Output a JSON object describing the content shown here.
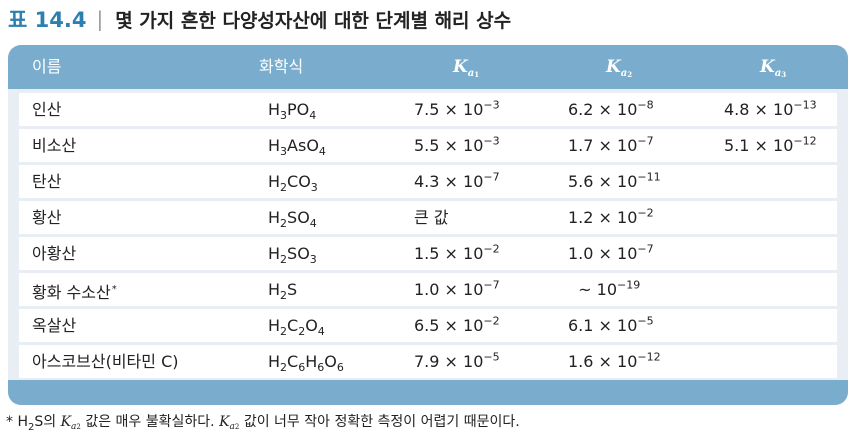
{
  "caption": {
    "label": "표 14.4",
    "separator": "|",
    "title": "몇 가지 흔한 다양성자산에 대한 단계별 해리 상수"
  },
  "table": {
    "headers": {
      "name": "이름",
      "formula": "화학식",
      "k_symbol": "K",
      "k_sub": "a",
      "k1_num": "1",
      "k2_num": "2",
      "k3_num": "3"
    },
    "rows": [
      {
        "name": "인산",
        "star": "",
        "formula": [
          [
            "H",
            ""
          ],
          [
            "3",
            "sub"
          ],
          [
            "PO",
            ""
          ],
          [
            "4",
            "sub"
          ]
        ],
        "ka1": [
          [
            "7.5 × 10",
            ""
          ],
          [
            "−3",
            "sup"
          ]
        ],
        "ka2": [
          [
            "6.2 × 10",
            ""
          ],
          [
            "−8",
            "sup"
          ]
        ],
        "ka3": [
          [
            "4.8 × 10",
            ""
          ],
          [
            "−13",
            "sup"
          ]
        ]
      },
      {
        "name": "비소산",
        "star": "",
        "formula": [
          [
            "H",
            ""
          ],
          [
            "3",
            "sub"
          ],
          [
            "AsO",
            ""
          ],
          [
            "4",
            "sub"
          ]
        ],
        "ka1": [
          [
            "5.5 × 10",
            ""
          ],
          [
            "−3",
            "sup"
          ]
        ],
        "ka2": [
          [
            "1.7 × 10",
            ""
          ],
          [
            "−7",
            "sup"
          ]
        ],
        "ka3": [
          [
            "5.1 × 10",
            ""
          ],
          [
            "−12",
            "sup"
          ]
        ]
      },
      {
        "name": "탄산",
        "star": "",
        "formula": [
          [
            "H",
            ""
          ],
          [
            "2",
            "sub"
          ],
          [
            "CO",
            ""
          ],
          [
            "3",
            "sub"
          ]
        ],
        "ka1": [
          [
            "4.3 × 10",
            ""
          ],
          [
            "−7",
            "sup"
          ]
        ],
        "ka2": [
          [
            "5.6 × 10",
            ""
          ],
          [
            "−11",
            "sup"
          ]
        ],
        "ka3": []
      },
      {
        "name": "황산",
        "star": "",
        "formula": [
          [
            "H",
            ""
          ],
          [
            "2",
            "sub"
          ],
          [
            "SO",
            ""
          ],
          [
            "4",
            "sub"
          ]
        ],
        "ka1": [
          [
            "큰 값",
            ""
          ]
        ],
        "ka2": [
          [
            "1.2 × 10",
            ""
          ],
          [
            "−2",
            "sup"
          ]
        ],
        "ka3": []
      },
      {
        "name": "아황산",
        "star": "",
        "formula": [
          [
            "H",
            ""
          ],
          [
            "2",
            "sub"
          ],
          [
            "SO",
            ""
          ],
          [
            "3",
            "sub"
          ]
        ],
        "ka1": [
          [
            "1.5 × 10",
            ""
          ],
          [
            "−2",
            "sup"
          ]
        ],
        "ka2": [
          [
            "1.0 × 10",
            ""
          ],
          [
            "−7",
            "sup"
          ]
        ],
        "ka3": []
      },
      {
        "name": "황화 수소산",
        "star": "*",
        "formula": [
          [
            "H",
            ""
          ],
          [
            "2",
            "sub"
          ],
          [
            "S",
            ""
          ]
        ],
        "ka1": [
          [
            "1.0 × 10",
            ""
          ],
          [
            "−7",
            "sup"
          ]
        ],
        "ka2": [
          [
            "  ~ 10",
            ""
          ],
          [
            "−19",
            "sup"
          ]
        ],
        "ka3": []
      },
      {
        "name": "옥살산",
        "star": "",
        "formula": [
          [
            "H",
            ""
          ],
          [
            "2",
            "sub"
          ],
          [
            "C",
            ""
          ],
          [
            "2",
            "sub"
          ],
          [
            "O",
            ""
          ],
          [
            "4",
            "sub"
          ]
        ],
        "ka1": [
          [
            "6.5 × 10",
            ""
          ],
          [
            "−2",
            "sup"
          ]
        ],
        "ka2": [
          [
            "6.1 × 10",
            ""
          ],
          [
            "−5",
            "sup"
          ]
        ],
        "ka3": []
      },
      {
        "name": "아스코브산(비타민 C)",
        "star": "",
        "formula": [
          [
            "H",
            ""
          ],
          [
            "2",
            "sub"
          ],
          [
            "C",
            ""
          ],
          [
            "6",
            "sub"
          ],
          [
            "H",
            ""
          ],
          [
            "6",
            "sub"
          ],
          [
            "O",
            ""
          ],
          [
            "6",
            "sub"
          ]
        ],
        "ka1": [
          [
            "7.9 × 10",
            ""
          ],
          [
            "−5",
            "sup"
          ]
        ],
        "ka2": [
          [
            "1.6 × 10",
            ""
          ],
          [
            "−12",
            "sup"
          ]
        ],
        "ka3": []
      }
    ]
  },
  "footnote": {
    "p1": "* H",
    "p2": "2",
    "p3": "S의 ",
    "k": "K",
    "a": "a",
    "n": "2",
    "p4": " 값은 매우 불확실하다. ",
    "p5": " 값이 너무 작아 정확한 측정이 어렵기 때문이다."
  },
  "colors": {
    "header_bg": "#7aadcd",
    "card_bg": "#e8eef3",
    "caption_label": "#2d7fb0"
  }
}
